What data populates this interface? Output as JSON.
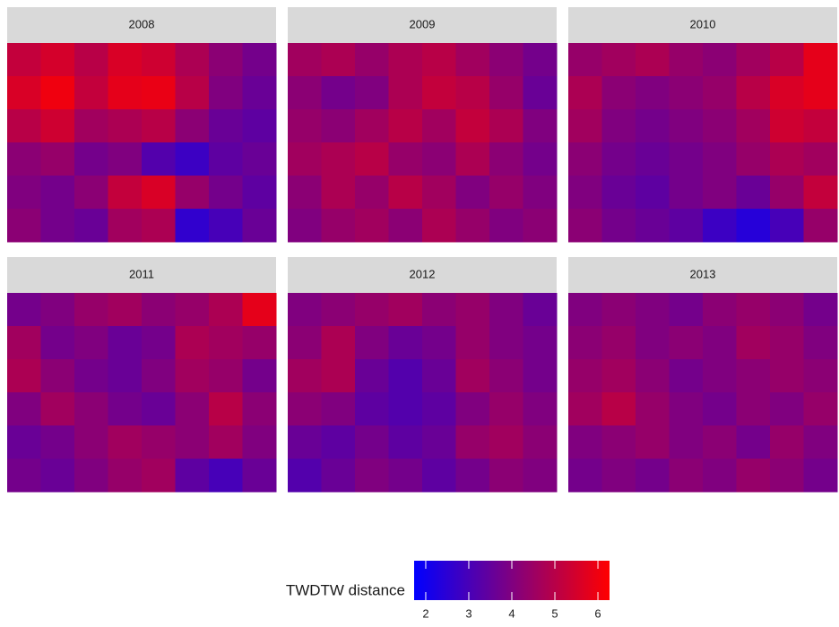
{
  "chart_data": {
    "type": "heatmap",
    "legend_title": "TWDTW distance",
    "low_color": "#0000ff",
    "high_color": "#ff0000",
    "zlim": [
      1.73,
      6.27
    ],
    "zticks": [
      2,
      3,
      4,
      5,
      6
    ],
    "panels": [
      {
        "title": "2008",
        "values": [
          [
            5.2,
            5.5,
            5.0,
            5.6,
            5.4,
            4.8,
            4.2,
            3.8
          ],
          [
            5.6,
            6.0,
            5.2,
            5.8,
            5.9,
            5.0,
            4.0,
            3.6
          ],
          [
            5.0,
            5.4,
            4.6,
            4.8,
            5.0,
            4.2,
            3.6,
            3.4
          ],
          [
            4.2,
            4.4,
            3.8,
            4.0,
            3.2,
            2.8,
            3.4,
            3.6
          ],
          [
            4.0,
            3.8,
            4.2,
            5.2,
            5.6,
            4.4,
            3.8,
            3.4
          ],
          [
            4.2,
            3.8,
            3.6,
            4.6,
            4.8,
            2.6,
            3.0,
            3.6
          ]
        ]
      },
      {
        "title": "2009",
        "values": [
          [
            4.6,
            4.8,
            4.4,
            4.8,
            5.0,
            4.6,
            4.2,
            3.8
          ],
          [
            4.2,
            3.8,
            4.0,
            4.8,
            5.2,
            5.0,
            4.4,
            3.6
          ],
          [
            4.4,
            4.2,
            4.6,
            5.0,
            4.6,
            5.2,
            4.8,
            4.0
          ],
          [
            4.6,
            4.8,
            5.0,
            4.4,
            4.2,
            4.8,
            4.2,
            3.8
          ],
          [
            4.2,
            4.8,
            4.4,
            5.0,
            4.6,
            4.0,
            4.4,
            4.0
          ],
          [
            4.0,
            4.4,
            4.6,
            4.2,
            4.8,
            4.4,
            4.0,
            4.2
          ]
        ]
      },
      {
        "title": "2010",
        "values": [
          [
            4.4,
            4.6,
            4.8,
            4.4,
            4.2,
            4.6,
            5.0,
            5.8
          ],
          [
            4.8,
            4.2,
            4.0,
            4.2,
            4.4,
            5.0,
            5.6,
            5.8
          ],
          [
            4.6,
            4.0,
            3.8,
            4.0,
            4.2,
            4.6,
            5.4,
            5.2
          ],
          [
            4.2,
            3.8,
            3.6,
            3.8,
            4.0,
            4.4,
            4.8,
            4.6
          ],
          [
            4.0,
            3.6,
            3.4,
            3.8,
            4.0,
            3.6,
            4.4,
            5.2
          ],
          [
            4.2,
            3.8,
            3.6,
            3.4,
            2.8,
            2.4,
            3.0,
            4.4
          ]
        ]
      },
      {
        "title": "2011",
        "values": [
          [
            3.8,
            4.0,
            4.4,
            4.6,
            4.2,
            4.4,
            4.8,
            5.8
          ],
          [
            4.6,
            3.8,
            4.0,
            3.6,
            3.8,
            4.8,
            4.6,
            4.4
          ],
          [
            4.8,
            4.2,
            3.8,
            3.6,
            4.0,
            4.6,
            4.4,
            3.8
          ],
          [
            4.0,
            4.6,
            4.2,
            3.8,
            3.6,
            4.2,
            5.0,
            4.2
          ],
          [
            3.6,
            3.8,
            4.2,
            4.6,
            4.4,
            4.2,
            4.6,
            4.0
          ],
          [
            3.8,
            3.6,
            4.0,
            4.4,
            4.6,
            3.4,
            3.0,
            3.6
          ]
        ]
      },
      {
        "title": "2012",
        "values": [
          [
            4.0,
            4.2,
            4.4,
            4.6,
            4.2,
            4.4,
            4.0,
            3.6
          ],
          [
            4.2,
            4.8,
            4.0,
            3.6,
            3.8,
            4.4,
            4.0,
            3.8
          ],
          [
            4.6,
            4.8,
            3.6,
            3.2,
            3.6,
            4.6,
            4.2,
            3.8
          ],
          [
            4.2,
            4.0,
            3.4,
            3.2,
            3.4,
            4.0,
            4.4,
            4.0
          ],
          [
            3.6,
            3.4,
            3.8,
            3.4,
            3.6,
            4.4,
            4.6,
            4.2
          ],
          [
            3.2,
            3.6,
            4.0,
            3.8,
            3.4,
            3.8,
            4.2,
            4.0
          ]
        ]
      },
      {
        "title": "2013",
        "values": [
          [
            4.0,
            4.2,
            4.0,
            3.8,
            4.2,
            4.4,
            4.2,
            3.8
          ],
          [
            4.2,
            4.4,
            4.0,
            4.2,
            4.0,
            4.6,
            4.4,
            4.0
          ],
          [
            4.4,
            4.6,
            4.2,
            3.8,
            4.0,
            4.2,
            4.4,
            4.2
          ],
          [
            4.6,
            5.0,
            4.4,
            4.0,
            3.8,
            4.2,
            4.0,
            4.4
          ],
          [
            4.0,
            4.2,
            4.4,
            4.0,
            4.2,
            3.8,
            4.4,
            4.0
          ],
          [
            3.8,
            4.0,
            3.8,
            4.2,
            4.0,
            4.4,
            4.2,
            3.8
          ]
        ]
      }
    ]
  }
}
